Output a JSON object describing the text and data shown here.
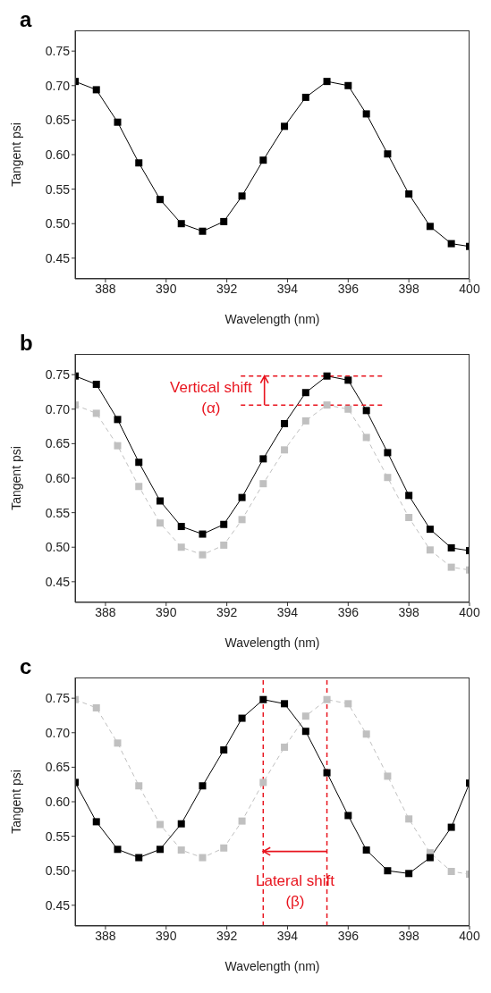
{
  "chart_data": [
    {
      "type": "line",
      "title": "a",
      "xlabel": "Wavelength (nm)",
      "ylabel": "Tangent psi",
      "xlim": [
        387,
        400
      ],
      "ylim": [
        0.42,
        0.78
      ],
      "xticks": [
        388,
        390,
        392,
        394,
        396,
        398,
        400
      ],
      "yticks": [
        0.45,
        {
          "value": 0.5,
          "label": "0.50"
        },
        0.55,
        {
          "value": 0.6,
          "label": "0.60"
        },
        0.65,
        {
          "value": 0.7,
          "label": "0.70"
        },
        0.75
      ],
      "marker": "square",
      "x": [
        387,
        387.7,
        388.4,
        389.1,
        389.8,
        390.5,
        391.2,
        391.9,
        392.5,
        393.2,
        393.9,
        394.6,
        395.3,
        396.0,
        396.6,
        397.3,
        398.0,
        398.7,
        399.4,
        400
      ],
      "series": [
        {
          "color": "#000000",
          "line_style": "solid",
          "values": [
            0.706,
            0.694,
            0.647,
            0.588,
            0.535,
            0.5,
            0.489,
            0.503,
            0.54,
            0.592,
            0.641,
            0.683,
            0.706,
            0.7,
            0.659,
            0.601,
            0.543,
            0.496,
            0.471,
            0.467
          ]
        }
      ]
    },
    {
      "type": "line",
      "title": "b",
      "xlabel": "Wavelength (nm)",
      "ylabel": "Tangent psi",
      "xlim": [
        387,
        400
      ],
      "ylim": [
        0.42,
        0.78
      ],
      "xticks": [
        388,
        390,
        392,
        394,
        396,
        398,
        400
      ],
      "yticks": [
        0.45,
        {
          "value": 0.5,
          "label": "0.50"
        },
        0.55,
        {
          "value": 0.6,
          "label": "0.60"
        },
        0.65,
        {
          "value": 0.7,
          "label": "0.70"
        },
        0.75
      ],
      "marker": "square",
      "x": [
        387,
        387.7,
        388.4,
        389.1,
        389.8,
        390.5,
        391.2,
        391.9,
        392.5,
        393.2,
        393.9,
        394.6,
        395.3,
        396.0,
        396.6,
        397.3,
        398.0,
        398.7,
        399.4,
        400
      ],
      "series": [
        {
          "color": "#c0c0c0",
          "line_style": "dashed",
          "values": [
            0.706,
            0.694,
            0.647,
            0.588,
            0.535,
            0.5,
            0.489,
            0.503,
            0.54,
            0.592,
            0.641,
            0.683,
            0.706,
            0.7,
            0.659,
            0.601,
            0.543,
            0.496,
            0.471,
            0.467
          ]
        },
        {
          "color": "#000000",
          "line_style": "solid",
          "values": [
            0.748,
            0.736,
            0.685,
            0.623,
            0.567,
            0.53,
            0.519,
            0.533,
            0.572,
            0.628,
            0.679,
            0.724,
            0.748,
            0.742,
            0.698,
            0.637,
            0.575,
            0.526,
            0.499,
            0.495
          ]
        }
      ],
      "ref_lines": [
        {
          "axis": "y",
          "value": 0.748,
          "color": "#e8141e",
          "line_style": "dashed"
        },
        {
          "axis": "y",
          "value": 0.706,
          "color": "#e8141e",
          "line_style": "dashed"
        }
      ],
      "annotations": [
        "Vertical shift\n(α)"
      ]
    },
    {
      "type": "line",
      "title": "c",
      "xlabel": "Wavelength (nm)",
      "ylabel": "Tangent psi",
      "xlim": [
        387,
        400
      ],
      "ylim": [
        0.42,
        0.78
      ],
      "xticks": [
        388,
        390,
        392,
        394,
        396,
        398,
        400
      ],
      "yticks": [
        0.45,
        {
          "value": 0.5,
          "label": "0.50"
        },
        0.55,
        {
          "value": 0.6,
          "label": "0.60"
        },
        0.65,
        {
          "value": 0.7,
          "label": "0.70"
        },
        0.75
      ],
      "marker": "square",
      "x": [
        387,
        387.7,
        388.4,
        389.1,
        389.8,
        390.5,
        391.2,
        391.9,
        392.5,
        393.2,
        393.9,
        394.6,
        395.3,
        396.0,
        396.6,
        397.3,
        398.0,
        398.7,
        399.4,
        400
      ],
      "series": [
        {
          "color": "#c0c0c0",
          "line_style": "dashed",
          "values": [
            0.748,
            0.736,
            0.685,
            0.623,
            0.567,
            0.53,
            0.519,
            0.533,
            0.572,
            0.628,
            0.679,
            0.724,
            0.748,
            0.742,
            0.698,
            0.637,
            0.575,
            0.526,
            0.499,
            0.495
          ]
        },
        {
          "color": "#000000",
          "line_style": "solid",
          "values": [
            0.628,
            0.571,
            0.531,
            0.519,
            0.531,
            0.568,
            0.623,
            0.675,
            0.721,
            0.748,
            0.742,
            0.702,
            0.642,
            0.58,
            0.53,
            0.5,
            0.496,
            0.519,
            0.563,
            0.627
          ]
        }
      ],
      "ref_lines": [
        {
          "axis": "x",
          "value": 393.2,
          "color": "#e8141e",
          "line_style": "dashed"
        },
        {
          "axis": "x",
          "value": 395.3,
          "color": "#e8141e",
          "line_style": "dashed"
        }
      ],
      "annotations": [
        "Lateral shift\n(β)"
      ]
    }
  ]
}
